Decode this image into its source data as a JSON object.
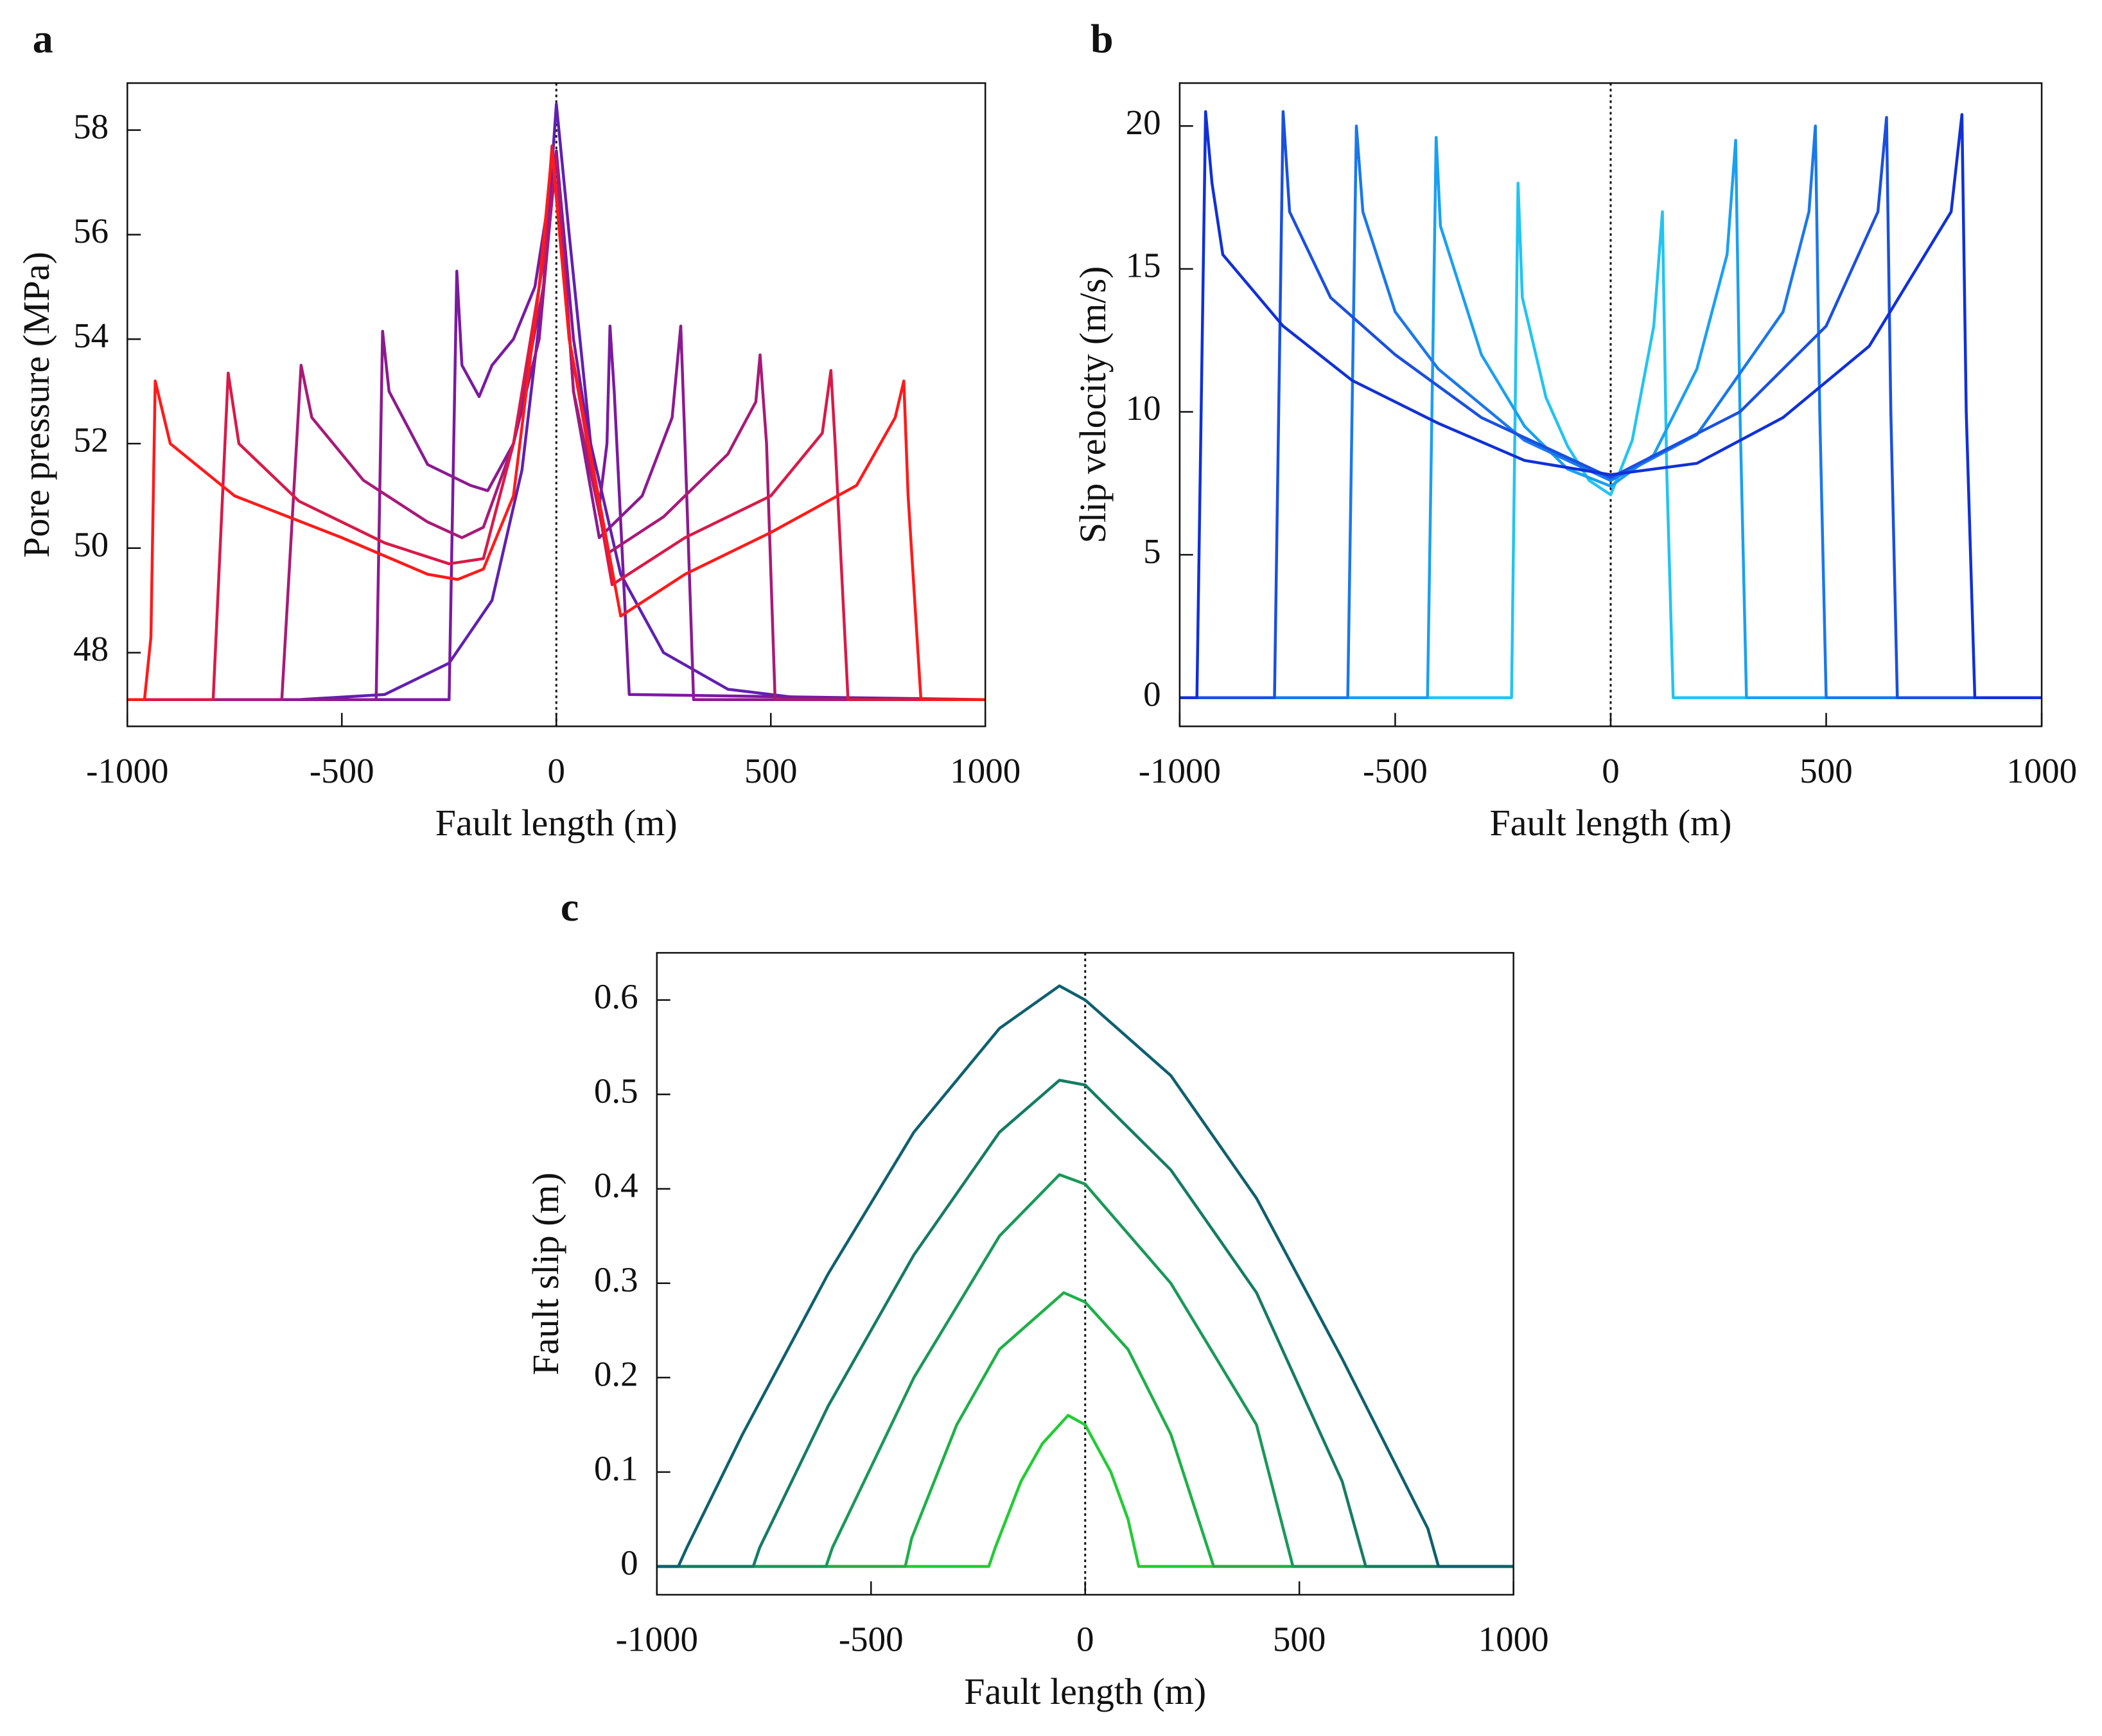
{
  "chart_data": [
    {
      "type": "line",
      "label": "a",
      "xlabel": "Fault length (m)",
      "ylabel": "Pore pressure (MPa)",
      "xlim": [
        -1000,
        1000
      ],
      "ylim": [
        46.59,
        58.9
      ],
      "xticks": [
        -1000,
        -500,
        0,
        500,
        1000
      ],
      "yticks": [
        48,
        50,
        52,
        54,
        56,
        58
      ],
      "vline": 0,
      "series": [
        {
          "color": "#6020b0",
          "x": [
            -1000,
            -600,
            -400,
            -250,
            -150,
            -80,
            -30,
            0,
            30,
            80,
            150,
            250,
            400,
            600,
            1000
          ],
          "values": [
            47.1,
            47.1,
            47.2,
            47.8,
            49,
            51.5,
            55,
            58.5,
            56,
            52,
            49.5,
            48,
            47.3,
            47.1,
            47.1
          ]
        },
        {
          "color": "#7a1aa0",
          "x": [
            -1000,
            -250,
            -232,
            -220,
            -180,
            -150,
            -100,
            -50,
            0,
            40,
            100,
            118,
            125,
            135,
            170,
            1000
          ],
          "values": [
            47.1,
            47.1,
            55.3,
            53.5,
            52.9,
            53.5,
            54,
            55,
            57.6,
            54,
            50.8,
            52,
            54.25,
            53,
            47.2,
            47.1
          ]
        },
        {
          "color": "#8c1a90",
          "x": [
            -1000,
            -420,
            -405,
            -390,
            -300,
            -200,
            -160,
            -100,
            -40,
            0,
            40,
            100,
            200,
            270,
            290,
            300,
            320,
            1000
          ],
          "values": [
            47.1,
            47.1,
            54.15,
            53,
            51.6,
            51.2,
            51.1,
            52,
            54,
            57.6,
            53,
            50.2,
            51,
            52.5,
            54.25,
            52,
            47.1,
            47.1
          ]
        },
        {
          "color": "#a81a78",
          "x": [
            -1000,
            -640,
            -595,
            -570,
            -450,
            -300,
            -220,
            -170,
            -100,
            -30,
            0,
            40,
            120,
            250,
            400,
            465,
            475,
            490,
            510,
            1000
          ],
          "values": [
            47.1,
            47.1,
            53.5,
            52.5,
            51.3,
            50.5,
            50.2,
            50.4,
            52,
            55,
            57.5,
            53,
            49.9,
            50.6,
            51.8,
            52.8,
            53.7,
            52,
            47.1,
            47.1
          ]
        },
        {
          "color": "#d81a48",
          "x": [
            -1000,
            -800,
            -765,
            -740,
            -600,
            -400,
            -250,
            -170,
            -100,
            -30,
            -10,
            30,
            130,
            300,
            500,
            620,
            640,
            650,
            680,
            1000
          ],
          "values": [
            47.1,
            47.1,
            53.35,
            52,
            50.9,
            50.1,
            49.7,
            49.8,
            52,
            55.5,
            57.7,
            54,
            49.3,
            50.2,
            51,
            52.2,
            53.4,
            52,
            47.1,
            47.1
          ]
        },
        {
          "color": "#ff1a1a",
          "x": [
            -1000,
            -960,
            -945,
            -935,
            -900,
            -750,
            -500,
            -300,
            -230,
            -170,
            -100,
            -40,
            -10,
            30,
            150,
            300,
            500,
            700,
            790,
            810,
            820,
            850,
            1000
          ],
          "values": [
            47.1,
            47.1,
            48.3,
            53.2,
            52,
            51,
            50.2,
            49.5,
            49.4,
            49.6,
            51,
            55,
            57.6,
            54,
            48.7,
            49.5,
            50.3,
            51.2,
            52.5,
            53.2,
            51,
            47.1,
            47.1
          ]
        }
      ]
    },
    {
      "type": "line",
      "label": "b",
      "xlabel": "Fault length (m)",
      "ylabel": "Slip velocity (m/s)",
      "xlim": [
        -1000,
        1000
      ],
      "ylim": [
        -1,
        21.5
      ],
      "xticks": [
        -1000,
        -500,
        0,
        500,
        1000
      ],
      "yticks": [
        0,
        5,
        10,
        15,
        20
      ],
      "vline": 0,
      "series": [
        {
          "color": "#22c4f0",
          "x": [
            -1000,
            -230,
            -215,
            -205,
            -150,
            -100,
            -50,
            0,
            50,
            100,
            120,
            130,
            145,
            1000
          ],
          "values": [
            0,
            0,
            18,
            14,
            10.5,
            8.8,
            7.6,
            7.1,
            9,
            13,
            17,
            8,
            0,
            0
          ]
        },
        {
          "color": "#1aa0f0",
          "x": [
            -1000,
            -425,
            -405,
            -395,
            -300,
            -200,
            -100,
            0,
            100,
            200,
            270,
            290,
            300,
            315,
            1000
          ],
          "values": [
            0,
            0,
            19.6,
            16.5,
            12,
            9.5,
            8,
            7.4,
            8.5,
            11.5,
            15.5,
            19.5,
            10,
            0,
            0
          ]
        },
        {
          "color": "#1a78ea",
          "x": [
            -1000,
            -610,
            -590,
            -575,
            -500,
            -400,
            -200,
            0,
            200,
            400,
            460,
            475,
            485,
            500,
            1000
          ],
          "values": [
            0,
            0,
            20,
            17,
            13.5,
            11.5,
            9,
            7.6,
            9.2,
            13.5,
            17,
            20,
            10,
            0,
            0
          ]
        },
        {
          "color": "#1a50e0",
          "x": [
            -1000,
            -780,
            -760,
            -745,
            -650,
            -500,
            -300,
            0,
            300,
            500,
            620,
            640,
            650,
            665,
            1000
          ],
          "values": [
            0,
            0,
            20.5,
            17,
            14,
            12,
            9.8,
            7.7,
            10,
            13,
            17,
            20.3,
            10,
            0,
            0
          ]
        },
        {
          "color": "#1030d8",
          "x": [
            -1000,
            -960,
            -940,
            -925,
            -900,
            -760,
            -600,
            -400,
            -200,
            0,
            200,
            400,
            600,
            790,
            815,
            825,
            845,
            1000
          ],
          "values": [
            0,
            0,
            20.5,
            18,
            15.5,
            13,
            11.1,
            9.6,
            8.3,
            7.8,
            8.2,
            9.8,
            12.3,
            17,
            20.4,
            10,
            0,
            0
          ]
        }
      ]
    },
    {
      "type": "line",
      "label": "c",
      "xlabel": "Fault length (m)",
      "ylabel": "Fault slip (m)",
      "xlim": [
        -1000,
        1000
      ],
      "ylim": [
        -0.03,
        0.65
      ],
      "xticks": [
        -1000,
        -500,
        0,
        500,
        1000
      ],
      "yticks": [
        0,
        0.1,
        0.2,
        0.3,
        0.4,
        0.5,
        0.6
      ],
      "vline": 0,
      "series": [
        {
          "color": "#22cc33",
          "x": [
            -1000,
            -225,
            -210,
            -150,
            -100,
            -40,
            0,
            60,
            100,
            125,
            1000
          ],
          "values": [
            0,
            0,
            0.02,
            0.09,
            0.13,
            0.16,
            0.15,
            0.1,
            0.05,
            0,
            0
          ]
        },
        {
          "color": "#1eb048",
          "x": [
            -1000,
            -420,
            -405,
            -300,
            -200,
            -50,
            0,
            100,
            200,
            300,
            1000
          ],
          "values": [
            0,
            0,
            0.03,
            0.15,
            0.23,
            0.29,
            0.28,
            0.23,
            0.14,
            0,
            0
          ]
        },
        {
          "color": "#1a9858",
          "x": [
            -1000,
            -605,
            -590,
            -400,
            -200,
            -60,
            0,
            200,
            400,
            485,
            1000
          ],
          "values": [
            0,
            0,
            0.02,
            0.2,
            0.35,
            0.415,
            0.405,
            0.3,
            0.15,
            0,
            0
          ]
        },
        {
          "color": "#147c62",
          "x": [
            -1000,
            -775,
            -760,
            -600,
            -400,
            -200,
            -60,
            0,
            200,
            400,
            600,
            655,
            1000
          ],
          "values": [
            0,
            0,
            0.02,
            0.17,
            0.33,
            0.46,
            0.515,
            0.51,
            0.42,
            0.29,
            0.09,
            0,
            0
          ]
        },
        {
          "color": "#0e606e",
          "x": [
            -1000,
            -950,
            -930,
            -800,
            -600,
            -400,
            -200,
            -60,
            0,
            200,
            400,
            600,
            800,
            825,
            1000
          ],
          "values": [
            0,
            0,
            0.02,
            0.14,
            0.31,
            0.46,
            0.57,
            0.615,
            0.6,
            0.52,
            0.39,
            0.22,
            0.04,
            0,
            0
          ]
        }
      ]
    }
  ]
}
